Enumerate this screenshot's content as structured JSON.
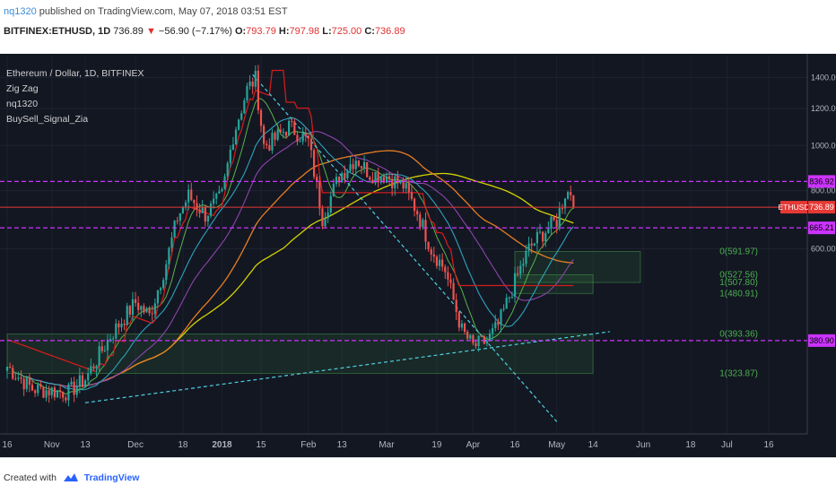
{
  "header": {
    "publisher": "nq1320",
    "published_text": "published on TradingView.com, May 07, 2018 03:51 EST",
    "symbol": "BITFINEX:ETHUSD, 1D",
    "last": "736.89",
    "change": "−56.90 (−7.17%)",
    "o_label": "O:",
    "o": "793.79",
    "h_label": "H:",
    "h": "797.98",
    "l_label": "L:",
    "l": "725.00",
    "c_label": "C:",
    "c": "736.89"
  },
  "legend": [
    "Ethereum / Dollar, 1D, BITFINEX",
    "Zig Zag",
    "nq1320",
    "BuySell_Signal_Zia"
  ],
  "footer": {
    "created_with": "Created with",
    "brand": "TradingView"
  },
  "colors": {
    "background": "#131722",
    "up": "#26a69a",
    "down": "#ef5350",
    "hline": "#cc33ff",
    "last_price": "#e53935",
    "trend": "#4dd0e1",
    "fib": "#4caf50",
    "sma_orange": "#e67e22",
    "sma_yellow": "#d4d400",
    "sma_purple": "#8e44ad",
    "sma_blue": "#2ea3bd",
    "sma_green": "#58b24a",
    "red_line": "#d01c1c"
  },
  "chart_data": {
    "type": "candlestick",
    "instrument": "Ethereum / Dollar, 1D, BITFINEX",
    "y_scale": "log",
    "ylim": [
      240,
      1560
    ],
    "y_ticks": [
      "1400.00",
      "1200.00",
      "1000.00",
      "800.00",
      "600.00"
    ],
    "x_ticks": [
      "16",
      "Nov",
      "13",
      "Dec",
      "18",
      "2018",
      "15",
      "Feb",
      "13",
      "Mar",
      "19",
      "Apr",
      "16",
      "May",
      "14",
      "Jun",
      "18",
      "Jul",
      "16"
    ],
    "price_path": [
      [
        "Oct 16",
        335
      ],
      [
        "Oct 25",
        300
      ],
      [
        "Nov 7",
        295
      ],
      [
        "Nov 13",
        315
      ],
      [
        "Nov 22",
        390
      ],
      [
        "Dec 1",
        460
      ],
      [
        "Dec 6",
        430
      ],
      [
        "Dec 12",
        560
      ],
      [
        "Dec 16",
        700
      ],
      [
        "Dec 20",
        780
      ],
      [
        "Dec 26",
        710
      ],
      [
        "Jan 1",
        780
      ],
      [
        "Jan 5",
        1050
      ],
      [
        "Jan 10",
        1320
      ],
      [
        "Jan 13",
        1390
      ],
      [
        "Jan 16",
        1000
      ],
      [
        "Jan 19",
        1020
      ],
      [
        "Jan 25",
        1100
      ],
      [
        "Feb 1",
        1020
      ],
      [
        "Feb 6",
        700
      ],
      [
        "Feb 12",
        860
      ],
      [
        "Feb 18",
        940
      ],
      [
        "Feb 23",
        870
      ],
      [
        "Mar 1",
        860
      ],
      [
        "Mar 7",
        820
      ],
      [
        "Mar 12",
        720
      ],
      [
        "Mar 17",
        600
      ],
      [
        "Mar 22",
        540
      ],
      [
        "Mar 28",
        400
      ],
      [
        "Apr 1",
        370
      ],
      [
        "Apr 6",
        380
      ],
      [
        "Apr 10",
        410
      ],
      [
        "Apr 16",
        510
      ],
      [
        "Apr 21",
        600
      ],
      [
        "Apr 25",
        640
      ],
      [
        "May 1",
        690
      ],
      [
        "May 4",
        790
      ],
      [
        "May 6",
        795
      ],
      [
        "May 7",
        736.89
      ]
    ],
    "horizontal_levels": [
      {
        "label": "836.92",
        "value": 836.92
      },
      {
        "label": "665.21",
        "value": 665.21
      },
      {
        "label": "380.90",
        "value": 380.9
      }
    ],
    "last_price": {
      "label": "ETHUSD",
      "value": "736.89"
    },
    "fib_levels": [
      {
        "text": "0(591.97)",
        "value": 591.97
      },
      {
        "text": "0(527.56)",
        "value": 527.56
      },
      {
        "text": "1(507.80)",
        "value": 507.8
      },
      {
        "text": "1(480.91)",
        "value": 480.91
      },
      {
        "text": "0(393.36)",
        "value": 393.36
      },
      {
        "text": "1(323.87)",
        "value": 323.87
      }
    ]
  }
}
